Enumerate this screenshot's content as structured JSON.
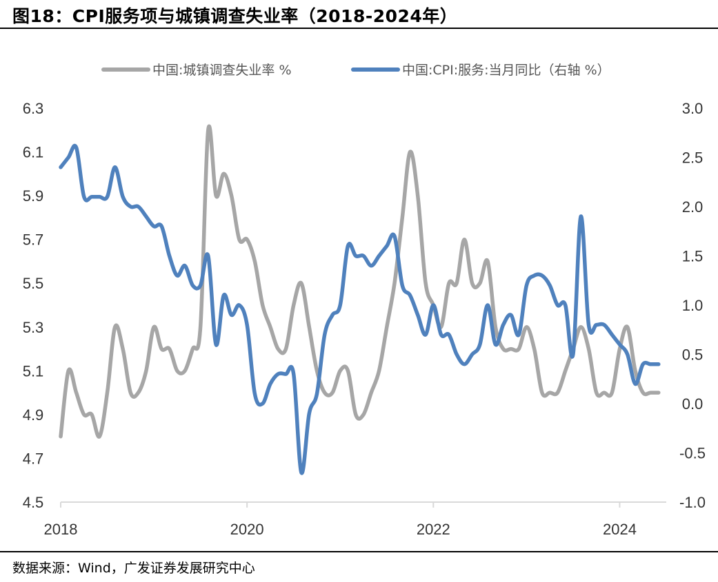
{
  "figure_title": "图18：CPI服务项与城镇调查失业率（2018-2024年）",
  "source_text": "数据来源：Wind，广发证券发展研究中心",
  "chart_data": {
    "type": "line",
    "title": "CPI服务项与城镇调查失业率（2018-2024年）",
    "x_tick_labels": [
      "2018",
      "2020",
      "2022",
      "2024"
    ],
    "left_axis": {
      "ylim": [
        4.5,
        6.3
      ],
      "ticks": [
        "4.5",
        "4.7",
        "4.9",
        "5.1",
        "5.3",
        "5.5",
        "5.7",
        "5.9",
        "6.1",
        "6.3"
      ]
    },
    "right_axis": {
      "ylim": [
        -1.0,
        3.0
      ],
      "ticks": [
        "-1.0",
        "-0.5",
        "0.0",
        "0.5",
        "1.0",
        "1.5",
        "2.0",
        "2.5",
        "3.0"
      ]
    },
    "xlim": [
      2018.0,
      2024.5
    ],
    "grid": false,
    "legend_position": "top-center",
    "series": [
      {
        "name": "中国:城镇调查失业率 %",
        "axis": "left",
        "color": "#a6a6a6",
        "x": [
          2018.0,
          2018.083,
          2018.167,
          2018.25,
          2018.333,
          2018.417,
          2018.5,
          2018.583,
          2018.667,
          2018.75,
          2018.833,
          2018.917,
          2019.0,
          2019.083,
          2019.167,
          2019.25,
          2019.333,
          2019.417,
          2019.5,
          2019.583,
          2019.667,
          2019.75,
          2019.833,
          2019.917,
          2020.0,
          2020.083,
          2020.167,
          2020.25,
          2020.333,
          2020.417,
          2020.5,
          2020.583,
          2020.667,
          2020.75,
          2020.833,
          2020.917,
          2021.0,
          2021.083,
          2021.167,
          2021.25,
          2021.333,
          2021.417,
          2021.5,
          2021.583,
          2021.667,
          2021.75,
          2021.833,
          2021.917,
          2022.0,
          2022.083,
          2022.167,
          2022.25,
          2022.333,
          2022.417,
          2022.5,
          2022.583,
          2022.667,
          2022.75,
          2022.833,
          2022.917,
          2023.0,
          2023.083,
          2023.167,
          2023.25,
          2023.333,
          2023.417,
          2023.5,
          2023.583,
          2023.667,
          2023.75,
          2023.833,
          2023.917,
          2024.0,
          2024.083,
          2024.167,
          2024.25,
          2024.333,
          2024.417
        ],
        "values": [
          4.8,
          5.1,
          5.0,
          4.9,
          4.9,
          4.8,
          5.0,
          5.3,
          5.2,
          5.0,
          5.0,
          5.1,
          5.3,
          5.2,
          5.2,
          5.1,
          5.1,
          5.2,
          5.3,
          6.2,
          5.9,
          6.0,
          5.9,
          5.7,
          5.7,
          5.6,
          5.4,
          5.3,
          5.2,
          5.2,
          5.4,
          5.5,
          5.3,
          5.1,
          5.0,
          5.0,
          5.1,
          5.1,
          4.9,
          4.9,
          5.0,
          5.1,
          5.3,
          5.5,
          5.8,
          6.1,
          5.9,
          5.5,
          5.4,
          5.3,
          5.5,
          5.5,
          5.7,
          5.5,
          5.5,
          5.6,
          5.3,
          5.2,
          5.2,
          5.2,
          5.3,
          5.2,
          5.0,
          5.0,
          5.0,
          5.1,
          5.2,
          5.3,
          5.2,
          5.0,
          5.0,
          5.0,
          5.2,
          5.3,
          5.1,
          5.0,
          5.0,
          5.0
        ]
      },
      {
        "name": "中国:CPI:服务:当月同比（右轴 %）",
        "axis": "right",
        "color": "#4f81bd",
        "x": [
          2018.0,
          2018.083,
          2018.167,
          2018.25,
          2018.333,
          2018.417,
          2018.5,
          2018.583,
          2018.667,
          2018.75,
          2018.833,
          2018.917,
          2019.0,
          2019.083,
          2019.167,
          2019.25,
          2019.333,
          2019.417,
          2019.5,
          2019.583,
          2019.667,
          2019.75,
          2019.833,
          2019.917,
          2020.0,
          2020.083,
          2020.167,
          2020.25,
          2020.333,
          2020.417,
          2020.5,
          2020.583,
          2020.667,
          2020.75,
          2020.833,
          2020.917,
          2021.0,
          2021.083,
          2021.167,
          2021.25,
          2021.333,
          2021.417,
          2021.5,
          2021.583,
          2021.667,
          2021.75,
          2021.833,
          2021.917,
          2022.0,
          2022.083,
          2022.167,
          2022.25,
          2022.333,
          2022.417,
          2022.5,
          2022.583,
          2022.667,
          2022.75,
          2022.833,
          2022.917,
          2023.0,
          2023.083,
          2023.167,
          2023.25,
          2023.333,
          2023.417,
          2023.5,
          2023.583,
          2023.667,
          2023.75,
          2023.833,
          2023.917,
          2024.0,
          2024.083,
          2024.167,
          2024.25,
          2024.333,
          2024.417
        ],
        "values": [
          2.4,
          2.5,
          2.6,
          2.1,
          2.1,
          2.1,
          2.1,
          2.4,
          2.1,
          2.0,
          2.0,
          1.9,
          1.8,
          1.8,
          1.5,
          1.3,
          1.4,
          1.2,
          1.2,
          1.5,
          0.6,
          1.1,
          0.9,
          1.0,
          0.8,
          0.1,
          0.0,
          0.2,
          0.3,
          0.3,
          0.3,
          -0.7,
          -0.1,
          0.1,
          0.7,
          0.9,
          1.0,
          1.6,
          1.5,
          1.5,
          1.4,
          1.5,
          1.6,
          1.7,
          1.2,
          1.1,
          0.9,
          0.7,
          1.0,
          0.7,
          0.7,
          0.5,
          0.4,
          0.5,
          0.6,
          1.0,
          0.6,
          0.8,
          0.9,
          0.7,
          1.2,
          1.3,
          1.3,
          1.2,
          1.0,
          1.0,
          0.5,
          1.9,
          0.8,
          0.8,
          0.8,
          0.7,
          0.6,
          0.5,
          0.2,
          0.4,
          0.4,
          0.4
        ]
      }
    ]
  }
}
